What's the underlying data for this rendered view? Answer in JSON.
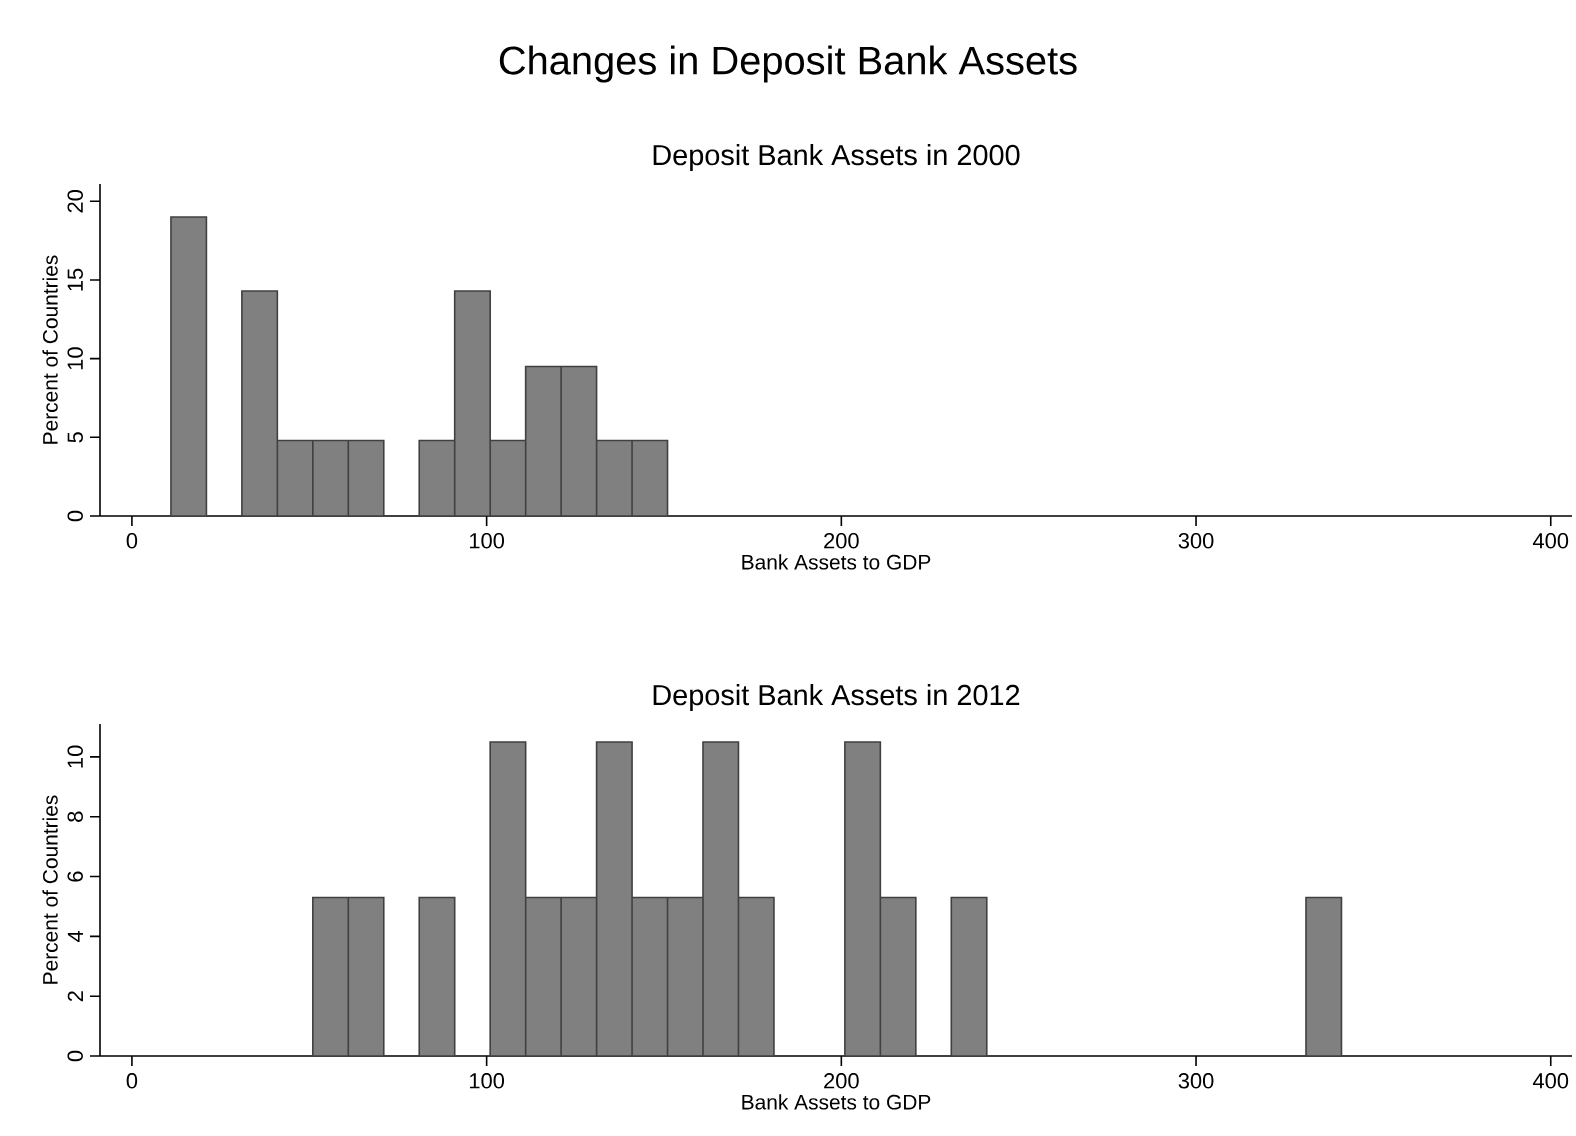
{
  "chart_data": [
    {
      "type": "histogram",
      "title": "Changes in Deposit Bank Assets",
      "subtitle": "Deposit Bank Assets in 2000",
      "xlabel": "Bank Assets to GDP",
      "ylabel": "Percent of Countries",
      "bins": [
        11,
        21,
        31,
        41,
        51,
        61,
        71,
        81,
        91,
        101,
        111,
        121,
        131,
        141,
        151
      ],
      "values": [
        19,
        0,
        14.3,
        4.8,
        4.8,
        4.8,
        0,
        4.8,
        14.3,
        4.8,
        9.5,
        9.5,
        4.8,
        4.8
      ],
      "color": "#808080",
      "xlim": [
        -9,
        406
      ],
      "ylim": [
        0,
        21.1
      ],
      "xticks": [
        0,
        100,
        200,
        300,
        400
      ],
      "yticks": [
        0,
        5,
        10,
        15,
        20
      ],
      "grid": false
    },
    {
      "type": "histogram",
      "title": "Deposit Bank Assets in 2012",
      "xlabel": "Bank Assets to GDP",
      "ylabel": "Percent of Countries",
      "bins": [
        51,
        61,
        71,
        81,
        91,
        101,
        111,
        121,
        131,
        141,
        151,
        161,
        171,
        181,
        191,
        201,
        211,
        221,
        231,
        241,
        251,
        261,
        271,
        281,
        291,
        301,
        311,
        321,
        331,
        341
      ],
      "values": [
        5.3,
        5.3,
        0,
        5.3,
        0,
        10.5,
        5.3,
        5.3,
        10.5,
        5.3,
        5.3,
        10.5,
        5.3,
        0,
        0,
        10.5,
        5.3,
        0,
        5.3,
        0,
        0,
        0,
        0,
        0,
        0,
        0,
        0,
        0,
        5.3
      ],
      "color": "#808080",
      "xlim": [
        -9,
        406
      ],
      "ylim": [
        0,
        11.1
      ],
      "xticks": [
        0,
        100,
        200,
        300,
        400
      ],
      "yticks": [
        0,
        2,
        4,
        6,
        8,
        10
      ],
      "grid": false
    }
  ]
}
